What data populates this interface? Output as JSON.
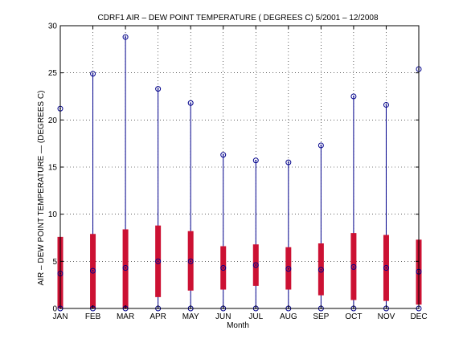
{
  "chart_data": {
    "type": "box",
    "title": "CDRF1  AIR – DEW POINT TEMPERATURE ( DEGREES C) 5/2001 – 12/2008",
    "xlabel": "Month",
    "ylabel": "AIR – DEW POINT TEMPERATURE  —  (DEGREES C)",
    "ylim": [
      0,
      30
    ],
    "yticks": [
      0,
      5,
      10,
      15,
      20,
      25,
      30
    ],
    "grid": true,
    "categories": [
      "JAN",
      "FEB",
      "MAR",
      "APR",
      "MAY",
      "JUN",
      "JUL",
      "AUG",
      "SEP",
      "OCT",
      "NOV",
      "DEC"
    ],
    "series": [
      {
        "min": [
          0,
          0,
          0,
          0,
          0,
          0,
          0,
          0,
          0,
          0,
          0,
          0
        ],
        "q1": [
          0,
          0,
          0,
          1.2,
          1.9,
          2.0,
          2.4,
          2.0,
          1.4,
          0.9,
          0.8,
          0.4
        ],
        "median": [
          3.7,
          4.0,
          4.3,
          5.0,
          5.0,
          4.3,
          4.6,
          4.2,
          4.1,
          4.4,
          4.3,
          3.9
        ],
        "q3": [
          7.6,
          7.9,
          8.4,
          8.8,
          8.2,
          6.6,
          6.8,
          6.5,
          6.9,
          8.0,
          7.8,
          7.3
        ],
        "max": [
          21.2,
          24.9,
          28.8,
          23.3,
          21.8,
          16.3,
          15.7,
          15.5,
          17.3,
          22.5,
          21.6,
          25.4
        ]
      }
    ],
    "colors": {
      "box": "#cc1133",
      "whisker": "#00008b",
      "marker": "#00008b",
      "grid": "#000000"
    }
  }
}
